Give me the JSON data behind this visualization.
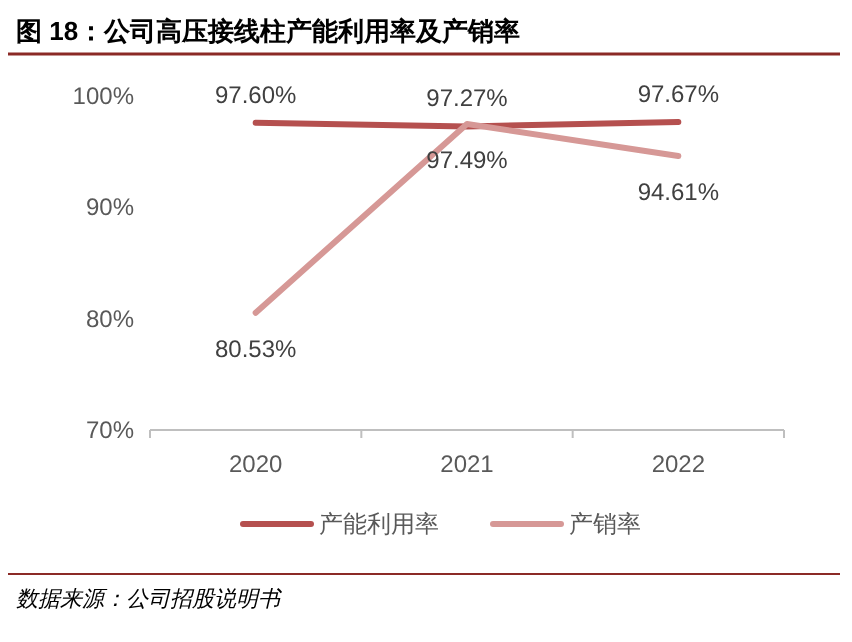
{
  "chart_data": {
    "type": "line",
    "title": "图 18：公司高压接线柱产能利用率及产销率",
    "categories": [
      "2020",
      "2021",
      "2022"
    ],
    "series": [
      {
        "name": "产能利用率",
        "color": "#b5504f",
        "values": [
          97.6,
          97.27,
          97.67
        ],
        "value_labels": [
          "97.60%",
          "97.27%",
          "97.67%"
        ]
      },
      {
        "name": "产销率",
        "color": "#d69896",
        "values": [
          80.53,
          97.49,
          94.61
        ],
        "value_labels": [
          "80.53%",
          "97.49%",
          "94.61%"
        ]
      }
    ],
    "ylim": [
      70,
      100
    ],
    "yticks": [
      {
        "value": 70,
        "label": "70%"
      },
      {
        "value": 80,
        "label": "80%"
      },
      {
        "value": 90,
        "label": "90%"
      },
      {
        "value": 100,
        "label": "100%"
      }
    ],
    "legend": "bottom",
    "annotations": [
      "数据来源：公司招股说明书"
    ]
  }
}
